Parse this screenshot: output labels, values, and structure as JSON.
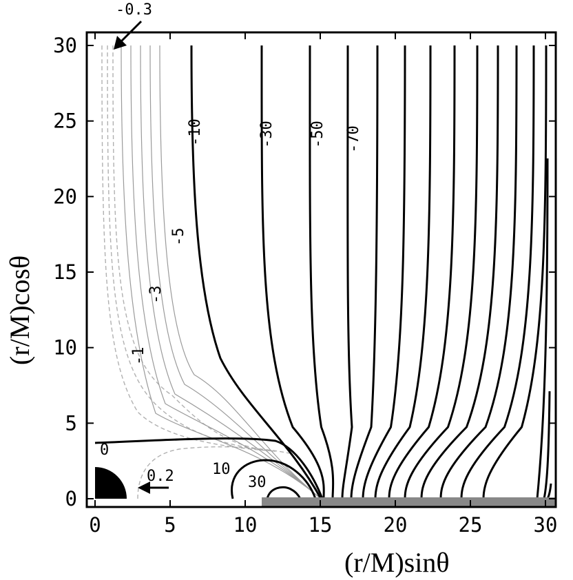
{
  "chart_data": {
    "type": "contour",
    "xlabel": "(r/M)sinθ",
    "ylabel": "(r/M)cosθ",
    "xlim": [
      0,
      30
    ],
    "ylim": [
      0,
      30
    ],
    "xticks": [
      0,
      5,
      10,
      15,
      20,
      25,
      30
    ],
    "yticks": [
      0,
      5,
      10,
      15,
      20,
      25,
      30
    ],
    "contour_labels": [
      {
        "text": "-0.3",
        "style": "dashed-gray"
      },
      {
        "text": "-1",
        "style": "thin-gray"
      },
      {
        "text": "-3",
        "style": "thin-gray"
      },
      {
        "text": "-5",
        "style": "thin-gray"
      },
      {
        "text": "-10",
        "style": "thick-black"
      },
      {
        "text": "-30",
        "style": "thick-black"
      },
      {
        "text": "-50",
        "style": "thick-black"
      },
      {
        "text": "-70",
        "style": "thick-black"
      },
      {
        "text": "0",
        "style": "thick-black"
      },
      {
        "text": "0.2",
        "style": "dashed-gray"
      },
      {
        "text": "10",
        "style": "thick-black"
      },
      {
        "text": "30",
        "style": "thick-black"
      }
    ],
    "shaded_regions": [
      {
        "name": "black-hole",
        "shape": "quarter-disk",
        "radius": 2,
        "color": "#000000"
      },
      {
        "name": "disk",
        "shape": "strip-on-x-axis",
        "x_from": 11.2,
        "x_to": 30,
        "color": "#888888"
      }
    ],
    "contour_styles": {
      "thick": "#000000",
      "thin": "#9a9a9a",
      "dashed": "#b0b0b0"
    }
  }
}
